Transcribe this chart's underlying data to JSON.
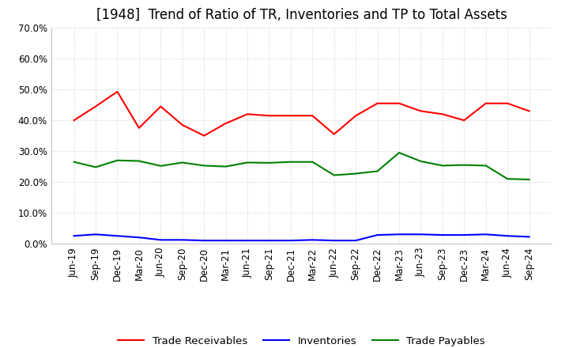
{
  "title": "[1948]  Trend of Ratio of TR, Inventories and TP to Total Assets",
  "ylim": [
    0.0,
    0.7
  ],
  "yticks": [
    0.0,
    0.1,
    0.2,
    0.3,
    0.4,
    0.5,
    0.6,
    0.7
  ],
  "x_labels": [
    "Jun-19",
    "Sep-19",
    "Dec-19",
    "Mar-20",
    "Jun-20",
    "Sep-20",
    "Dec-20",
    "Mar-21",
    "Jun-21",
    "Sep-21",
    "Dec-21",
    "Mar-22",
    "Jun-22",
    "Sep-22",
    "Dec-22",
    "Mar-23",
    "Jun-23",
    "Sep-23",
    "Dec-23",
    "Mar-24",
    "Jun-24",
    "Sep-24"
  ],
  "trade_receivables": [
    0.4,
    0.445,
    0.493,
    0.375,
    0.445,
    0.385,
    0.35,
    0.39,
    0.42,
    0.415,
    0.415,
    0.415,
    0.355,
    0.415,
    0.455,
    0.455,
    0.43,
    0.42,
    0.4,
    0.455,
    0.455,
    0.43
  ],
  "inventories": [
    0.025,
    0.03,
    0.025,
    0.02,
    0.012,
    0.012,
    0.01,
    0.01,
    0.01,
    0.01,
    0.01,
    0.012,
    0.01,
    0.01,
    0.028,
    0.03,
    0.03,
    0.028,
    0.028,
    0.03,
    0.025,
    0.022
  ],
  "trade_payables": [
    0.265,
    0.248,
    0.27,
    0.268,
    0.252,
    0.263,
    0.253,
    0.25,
    0.263,
    0.262,
    0.265,
    0.265,
    0.222,
    0.227,
    0.235,
    0.295,
    0.267,
    0.253,
    0.255,
    0.253,
    0.21,
    0.208
  ],
  "tr_color": "#FF0000",
  "inv_color": "#0000FF",
  "tp_color": "#008000",
  "legend_labels": [
    "Trade Receivables",
    "Inventories",
    "Trade Payables"
  ],
  "grid_color": "#AAAAAA",
  "background_color": "#FFFFFF",
  "title_fontsize": 12,
  "tick_fontsize": 8.5,
  "legend_fontsize": 9.5
}
